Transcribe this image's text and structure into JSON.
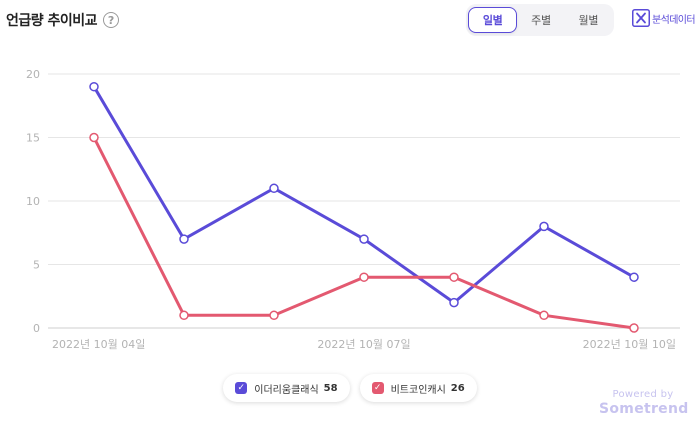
{
  "title": "언급량 추이비교",
  "help_icon": "question-circle-icon",
  "period_tabs": [
    {
      "label": "일별",
      "active": true
    },
    {
      "label": "주별",
      "active": false
    },
    {
      "label": "월별",
      "active": false
    }
  ],
  "export": {
    "label": "분석데이터",
    "icon": "excel-icon"
  },
  "colors": {
    "series1": "#5a4bd8",
    "series2": "#e35970",
    "accent": "#5a4bd8"
  },
  "chart_data": {
    "type": "line",
    "x": [
      "2022-10-04",
      "2022-10-05",
      "2022-10-06",
      "2022-10-07",
      "2022-10-08",
      "2022-10-09",
      "2022-10-10"
    ],
    "x_tick_labels": [
      "2022년 10월 04일",
      "2022년 10월 07일",
      "2022년 10월 10일"
    ],
    "y_ticks": [
      0,
      5,
      10,
      15,
      20
    ],
    "ylim": [
      0,
      20
    ],
    "grid": true,
    "legend_position": "bottom",
    "series": [
      {
        "name": "이더리움클래식",
        "total": 58,
        "color": "#5a4bd8",
        "values": [
          19,
          7,
          11,
          7,
          2,
          8,
          4
        ]
      },
      {
        "name": "비트코인캐시",
        "total": 26,
        "color": "#e35970",
        "values": [
          15,
          1,
          1,
          4,
          4,
          1,
          0
        ]
      }
    ]
  },
  "powered": {
    "by": "Powered by",
    "brand": "Sometrend"
  }
}
